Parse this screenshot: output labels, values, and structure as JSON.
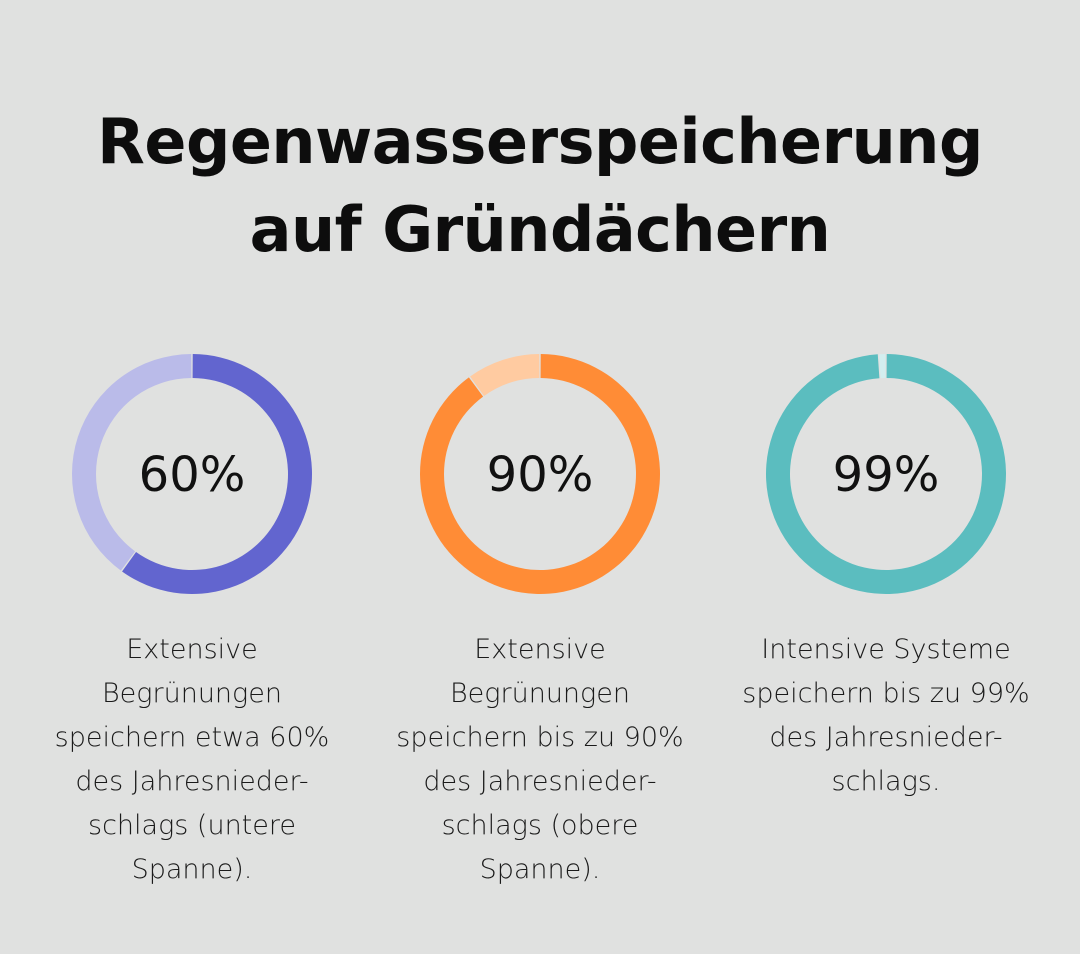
{
  "title": {
    "line1": "Regenwasserspeicherung",
    "line2": "auf Gründächern"
  },
  "chart_data": [
    {
      "type": "pie",
      "values": [
        60,
        40
      ],
      "label": "60%",
      "colors": {
        "value": "#6265cf",
        "rest": "#babbe9"
      },
      "description": [
        "Extensive",
        "Begrünungen",
        "speichern etwa 60%",
        "des Jahresnieder-",
        "schlags (untere",
        "Spanne)."
      ]
    },
    {
      "type": "pie",
      "values": [
        90,
        10
      ],
      "label": "90%",
      "colors": {
        "value": "#ff8c36",
        "rest": "#ffcba1"
      },
      "description": [
        "Extensive",
        "Begrünungen",
        "speichern bis zu 90%",
        "des Jahresnieder-",
        "schlags (obere",
        "Spanne)."
      ]
    },
    {
      "type": "pie",
      "values": [
        99,
        1
      ],
      "label": "99%",
      "colors": {
        "value": "#5bbdbf",
        "rest": "#d3eeef"
      },
      "description": [
        "Intensive Systeme",
        "speichern bis zu 99%",
        "des Jahresnieder-",
        "schlags."
      ]
    }
  ]
}
